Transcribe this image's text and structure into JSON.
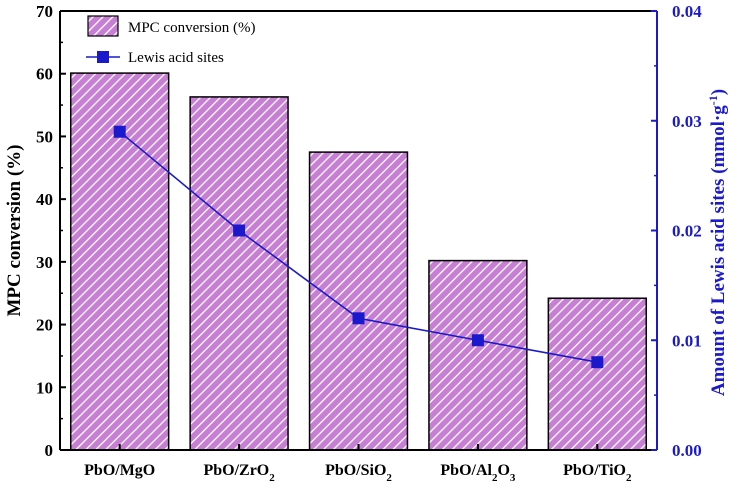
{
  "chart_data": {
    "type": "bar",
    "categories": [
      "PbO/MgO",
      "PbO/ZrO2",
      "PbO/SiO2",
      "PbO/Al2O3",
      "PbO/TiO2"
    ],
    "category_labels": [
      {
        "base": "PbO/MgO",
        "sub": "",
        "tail": "",
        "sub2": ""
      },
      {
        "base": "PbO/ZrO",
        "sub": "2",
        "tail": "",
        "sub2": ""
      },
      {
        "base": "PbO/SiO",
        "sub": "2",
        "tail": "",
        "sub2": ""
      },
      {
        "base": "PbO/Al",
        "sub": "2",
        "tail": "O",
        "sub2": "3"
      },
      {
        "base": "PbO/TiO",
        "sub": "2",
        "tail": "",
        "sub2": ""
      }
    ],
    "series": [
      {
        "name": "MPC conversion (%)",
        "type": "bar",
        "axis": "left",
        "values": [
          60.1,
          56.3,
          47.5,
          30.2,
          24.2
        ]
      },
      {
        "name": "Lewis acid sites",
        "type": "line",
        "axis": "right",
        "values": [
          0.029,
          0.02,
          0.012,
          0.01,
          0.008
        ]
      }
    ],
    "ylabel_left": "MPC conversion (%)",
    "ylabel_right_prefix": "Amount of Lewis acid sites (mmol·g",
    "ylabel_right_sup": "-1",
    "ylabel_right_suffix": ")",
    "ylim_left": [
      0,
      70
    ],
    "ylim_right": [
      0,
      0.04
    ],
    "yticks_left": [
      "0",
      "10",
      "20",
      "30",
      "40",
      "50",
      "60",
      "70"
    ],
    "yticks_right": [
      "0.00",
      "0.01",
      "0.02",
      "0.03",
      "0.04"
    ],
    "legend_position": "top-left",
    "colors": {
      "bar_fill": "#c77fd4",
      "bar_hatch": "#ffffff",
      "bar_edge": "#000000",
      "line": "#1a1acc",
      "right_axis": "#1a1acc"
    }
  }
}
